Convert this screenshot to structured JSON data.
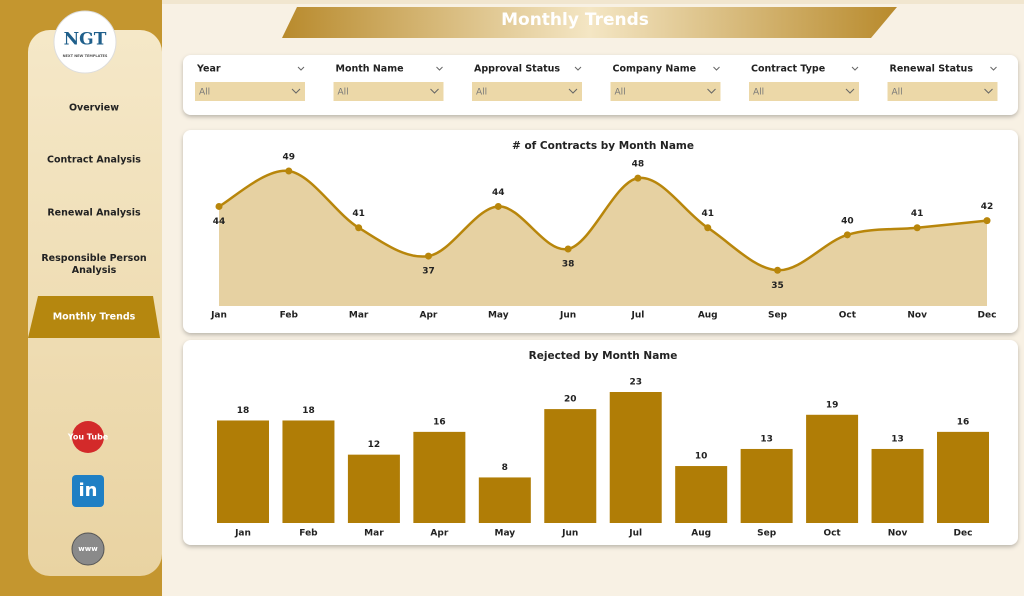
{
  "header": {
    "title": "Monthly Trends"
  },
  "logo": {
    "text": "NGT",
    "subtext": "NEXT NEW TEMPLATES"
  },
  "nav": [
    "Overview",
    "Contract Analysis",
    "Renewal Analysis",
    "Responsible Person Analysis",
    "Monthly Trends"
  ],
  "active_nav": 4,
  "icons": [
    "You Tube",
    "in",
    "www"
  ],
  "filters": [
    {
      "label": "Year",
      "value": "All"
    },
    {
      "label": "Month Name",
      "value": "All"
    },
    {
      "label": "Approval Status",
      "value": "All"
    },
    {
      "label": "Company Name",
      "value": "All"
    },
    {
      "label": "Contract Type",
      "value": "All"
    },
    {
      "label": "Renewal Status",
      "value": "All"
    }
  ],
  "chart_data": [
    {
      "type": "area",
      "title": "# of Contracts by Month Name",
      "color": "#b8860b",
      "fill": "#e6d1a2",
      "categories": [
        "Jan",
        "Feb",
        "Mar",
        "Apr",
        "May",
        "Jun",
        "Jul",
        "Aug",
        "Sep",
        "Oct",
        "Nov",
        "Dec"
      ],
      "values": [
        44,
        49,
        41,
        37,
        44,
        38,
        48,
        41,
        35,
        40,
        41,
        42
      ]
    },
    {
      "type": "bar",
      "title": "Rejected by Month Name",
      "color": "#b07d06",
      "categories": [
        "Jan",
        "Feb",
        "Mar",
        "Apr",
        "May",
        "Jun",
        "Jul",
        "Aug",
        "Sep",
        "Oct",
        "Nov",
        "Dec"
      ],
      "values": [
        18,
        18,
        12,
        16,
        8,
        20,
        23,
        10,
        13,
        19,
        13,
        16
      ]
    }
  ]
}
